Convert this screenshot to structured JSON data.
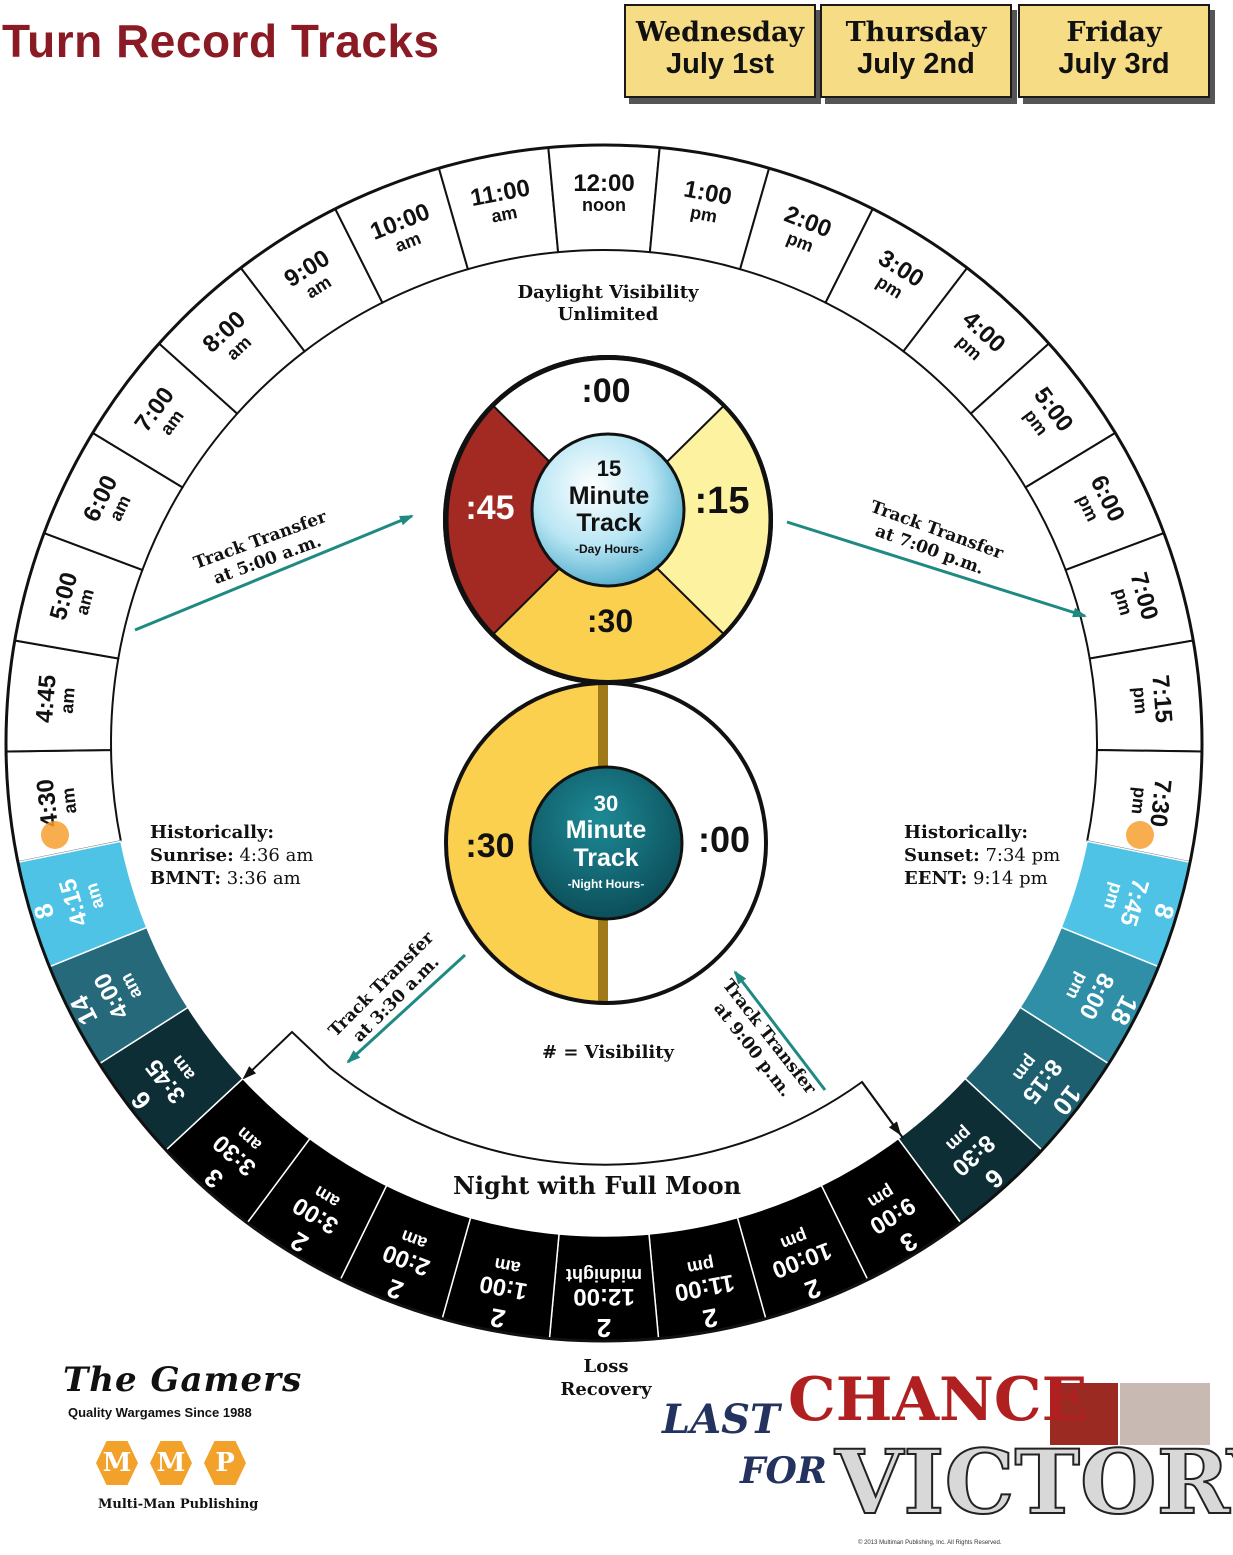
{
  "title": "Turn Record Tracks",
  "days": [
    {
      "dow": "Wednesday",
      "date": "July 1st"
    },
    {
      "dow": "Thursday",
      "date": "July 2nd"
    },
    {
      "dow": "Friday",
      "date": "July 3rd"
    }
  ],
  "colors": {
    "title": "#8a1a24",
    "day_box": "#f6dc84",
    "dark_red": "#a32a22",
    "light_yellow": "#fdf2a0",
    "gold": "#fbd04f",
    "sky": "#4fc3e6",
    "teal": "#125e6a",
    "arrow": "#1f8a82"
  },
  "day_track": [
    {
      "line1": "4:30",
      "line2": "am"
    },
    {
      "line1": "4:45",
      "line2": "am"
    },
    {
      "line1": "5:00",
      "line2": "am"
    },
    {
      "line1": "6:00",
      "line2": "am"
    },
    {
      "line1": "7:00",
      "line2": "am"
    },
    {
      "line1": "8:00",
      "line2": "am"
    },
    {
      "line1": "9:00",
      "line2": "am"
    },
    {
      "line1": "10:00",
      "line2": "am"
    },
    {
      "line1": "11:00",
      "line2": "am"
    },
    {
      "line1": "12:00",
      "line2": "noon"
    },
    {
      "line1": "1:00",
      "line2": "pm"
    },
    {
      "line1": "2:00",
      "line2": "pm"
    },
    {
      "line1": "3:00",
      "line2": "pm"
    },
    {
      "line1": "4:00",
      "line2": "pm"
    },
    {
      "line1": "5:00",
      "line2": "pm"
    },
    {
      "line1": "6:00",
      "line2": "pm"
    },
    {
      "line1": "7:00",
      "line2": "pm"
    },
    {
      "line1": "7:15",
      "line2": "pm"
    },
    {
      "line1": "7:30",
      "line2": "pm"
    }
  ],
  "dusk_track": [
    {
      "vis": "8",
      "line1": "7:45",
      "line2": "pm",
      "fill": "#4fc3e6"
    },
    {
      "vis": "18",
      "line1": "8:00",
      "line2": "pm",
      "fill": "#2f8fa6"
    },
    {
      "vis": "10",
      "line1": "8:15",
      "line2": "pm",
      "fill": "#1d5f6e"
    },
    {
      "vis": "6",
      "line1": "8:30",
      "line2": "pm",
      "fill": "#0e2e36"
    },
    {
      "vis": "3",
      "line1": "9:00",
      "line2": "pm",
      "fill": "#000000"
    },
    {
      "vis": "2",
      "line1": "10:00",
      "line2": "pm",
      "fill": "#000000"
    },
    {
      "vis": "2",
      "line1": "11:00",
      "line2": "pm",
      "fill": "#000000"
    },
    {
      "vis": "2",
      "line1": "12:00",
      "line2": "midnight",
      "fill": "#000000"
    },
    {
      "vis": "2",
      "line1": "1:00",
      "line2": "am",
      "fill": "#000000"
    },
    {
      "vis": "2",
      "line1": "2:00",
      "line2": "am",
      "fill": "#000000"
    },
    {
      "vis": "2",
      "line1": "3:00",
      "line2": "am",
      "fill": "#000000"
    },
    {
      "vis": "3",
      "line1": "3:30",
      "line2": "am",
      "fill": "#000000"
    },
    {
      "vis": "6",
      "line1": "3:45",
      "line2": "am",
      "fill": "#0e2e36"
    },
    {
      "vis": "14",
      "line1": "4:00",
      "line2": "am",
      "fill": "#25697a"
    },
    {
      "vis": "8",
      "line1": "4:15",
      "line2": "am",
      "fill": "#4fc3e6"
    }
  ],
  "inner_text": {
    "daylight1": "Daylight Visibility",
    "daylight2": "Unlimited",
    "transfer_5am_1": "Track Transfer",
    "transfer_5am_2": "at 5:00 a.m.",
    "transfer_7pm_1": "Track Transfer",
    "transfer_7pm_2": "at 7:00 p.m.",
    "hist_left_1": "Historically:",
    "hist_left_2_label": "Sunrise:",
    "hist_left_2_value": " 4:36 am",
    "hist_left_3_label": "BMNT:",
    "hist_left_3_value": " 3:36 am",
    "hist_right_1": "Historically:",
    "hist_right_2_label": "Sunset:",
    "hist_right_2_value": " 7:34 pm",
    "hist_right_3_label": "EENT:",
    "hist_right_3_value": " 9:14 pm",
    "transfer_330_1": "Track Transfer",
    "transfer_330_2": "at 3:30 a.m.",
    "transfer_9pm_1": "Track Transfer",
    "transfer_9pm_2": "at 9:00 p.m.",
    "visibility_key": "# = Visibility",
    "night": "Night with Full Moon",
    "loss1": "Loss",
    "loss2": "Recovery"
  },
  "track15": {
    "q00": ":00",
    "q15": ":15",
    "q30": ":30",
    "q45": ":45",
    "title1": "15",
    "title2": "Minute",
    "title3": "Track",
    "sub": "-Day Hours-"
  },
  "track30": {
    "h00": ":00",
    "h30": ":30",
    "title1": "30",
    "title2": "Minute",
    "title3": "Track",
    "sub": "-Night Hours-"
  },
  "logos": {
    "gamers": "The Gamers",
    "gamers_tag": "Quality Wargames Since 1988",
    "mmp_letters": [
      "M",
      "M",
      "P"
    ],
    "mmp_tag": "Multi-Man Publishing",
    "lcv_last": "LAST",
    "lcv_chance": "CHANCE",
    "lcv_for": "FOR",
    "lcv_victory": "VICTORY",
    "copyright": "© 2013 Multiman Publishing, Inc. All Rights Reserved."
  }
}
